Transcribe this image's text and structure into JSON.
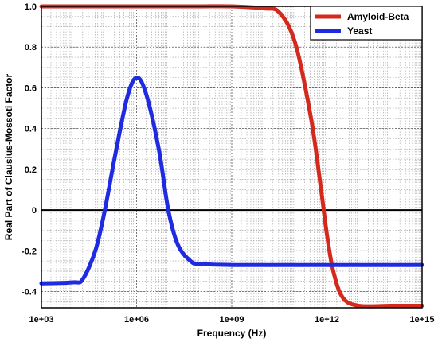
{
  "chart_data": {
    "type": "line",
    "title": "",
    "xlabel": "Frequency (Hz)",
    "ylabel": "Real Part of Clausius-Mossoti Factor",
    "x_scale": "log",
    "xlim": [
      1000,
      1000000000000000
    ],
    "ylim": [
      -0.48,
      1.0
    ],
    "x_ticks": [
      1000,
      1000000,
      1000000000,
      1000000000000,
      1000000000000000
    ],
    "x_tick_labels": [
      "1e+03",
      "1e+06",
      "1e+09",
      "1e+12",
      "1e+15"
    ],
    "y_ticks": [
      1.0,
      0.8,
      0.6,
      0.4,
      0.2,
      0,
      -0.2,
      -0.4
    ],
    "y_tick_labels": [
      "1.0",
      "0.8",
      "0.6",
      "0.4",
      "0.2",
      "0",
      "-0.2",
      "-0.4"
    ],
    "grid": true,
    "minor_grid": true,
    "reference_line_y": 0,
    "legend_position": "top-right",
    "series": [
      {
        "name": "Amyloid-Beta",
        "color": "#d42a1e",
        "x": [
          1000,
          10000,
          100000,
          1000000,
          10000000,
          100000000,
          1000000000,
          10000000000,
          31622776601,
          100000000000,
          316227766017,
          630957344480,
          1000000000000,
          1584893192461,
          3162277660168,
          10000000000000,
          100000000000000,
          1000000000000000
        ],
        "y": [
          1.0,
          1.0,
          1.0,
          1.0,
          1.0,
          1.0,
          1.0,
          0.99,
          0.97,
          0.82,
          0.45,
          0.12,
          -0.12,
          -0.3,
          -0.43,
          -0.47,
          -0.47,
          -0.47
        ]
      },
      {
        "name": "Yeast",
        "color": "#1f2be0",
        "x": [
          1000,
          10000,
          20000,
          50000,
          100000,
          200000,
          500000,
          1000000,
          2000000,
          5000000,
          10000000,
          20000000,
          50000000,
          100000000,
          1000000000,
          10000000000,
          100000000000,
          1000000000000,
          1000000000000000
        ],
        "y": [
          -0.36,
          -0.355,
          -0.34,
          -0.2,
          0.0,
          0.25,
          0.55,
          0.65,
          0.57,
          0.3,
          0.0,
          -0.17,
          -0.25,
          -0.265,
          -0.27,
          -0.27,
          -0.27,
          -0.27,
          -0.27
        ]
      }
    ]
  }
}
